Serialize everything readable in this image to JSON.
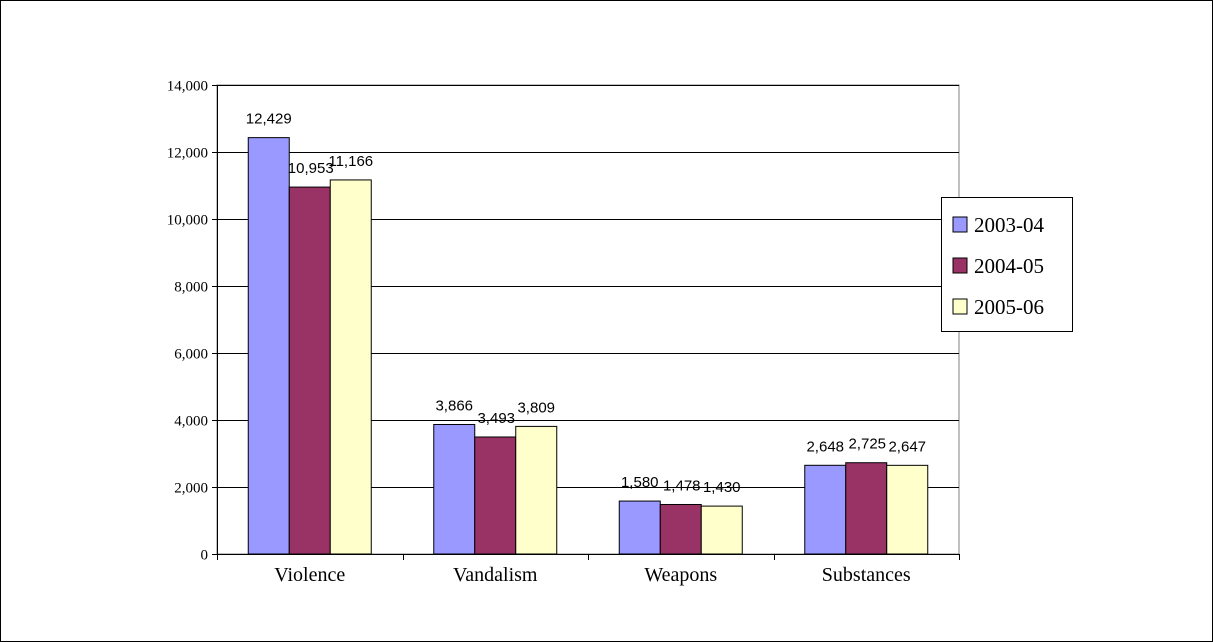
{
  "chart_data": {
    "type": "bar",
    "categories": [
      "Violence",
      "Vandalism",
      "Weapons",
      "Substances"
    ],
    "series": [
      {
        "name": "2003-04",
        "values": [
          12429,
          3866,
          1580,
          2648
        ],
        "color": "#9999ff"
      },
      {
        "name": "2004-05",
        "values": [
          10953,
          3493,
          1478,
          2725
        ],
        "color": "#993366"
      },
      {
        "name": "2005-06",
        "values": [
          11166,
          3809,
          1430,
          2647
        ],
        "color": "#ffffcc"
      }
    ],
    "value_labels": [
      [
        "12,429",
        "3,866",
        "1,580",
        "2,648"
      ],
      [
        "10,953",
        "3,493",
        "1,478",
        "2,725"
      ],
      [
        "11,166",
        "3,809",
        "1,430",
        "2,647"
      ]
    ],
    "y_ticks": [
      "0",
      "2,000",
      "4,000",
      "6,000",
      "8,000",
      "10,000",
      "12,000",
      "14,000"
    ],
    "ylim": [
      0,
      14000
    ],
    "grid": true,
    "legend_position": "right",
    "title": "",
    "xlabel": "",
    "ylabel": ""
  }
}
